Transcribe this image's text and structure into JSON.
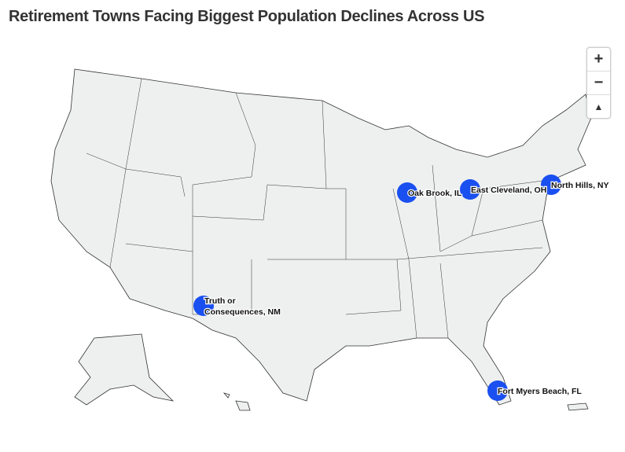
{
  "title": "Retirement Towns Facing Biggest Population Declines Across US",
  "controls": {
    "zoom_in": "+",
    "zoom_out": "−",
    "reset_north": "▲"
  },
  "colors": {
    "marker": "#1a4ff0",
    "land": "#edf0ef",
    "border": "#333333"
  },
  "markers": [
    {
      "label": "Oak Brook, IL"
    },
    {
      "label": "East Cleveland, OH"
    },
    {
      "label": "North Hills, NY"
    },
    {
      "label_line1": "Truth or",
      "label_line2": "Consequences, NM"
    },
    {
      "label": "Fort Myers Beach, FL"
    }
  ]
}
